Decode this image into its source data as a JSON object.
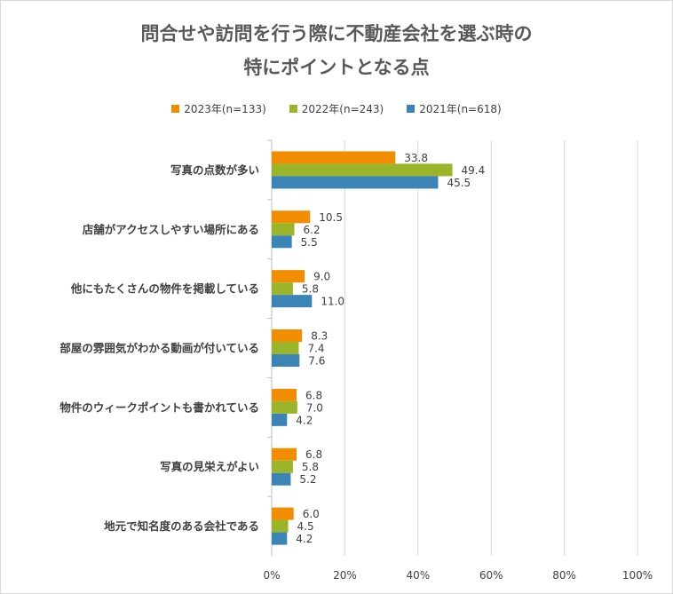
{
  "chart_data": {
    "type": "bar",
    "orientation": "horizontal",
    "title_lines": [
      "問合せや訪問を行う際に不動産会社を選ぶ時の",
      "特にポイントとなる点"
    ],
    "categories": [
      "写真の点数が多い",
      "店舗がアクセスしやすい場所にある",
      "他にもたくさんの物件を掲載している",
      "部屋の雰囲気がわかる動画が付いている",
      "物件のウィークポイントも書かれている",
      "写真の見栄えがよい",
      "地元で知名度のある会社である"
    ],
    "series": [
      {
        "name": "2023年(n=133)",
        "color": "#f28c00",
        "values": [
          33.8,
          10.5,
          9.0,
          8.3,
          6.8,
          6.8,
          6.0
        ]
      },
      {
        "name": "2022年(n=243)",
        "color": "#9bb52a",
        "values": [
          49.4,
          6.2,
          5.8,
          7.4,
          7.0,
          5.8,
          4.5
        ]
      },
      {
        "name": "2021年(n=618)",
        "color": "#3a85b5",
        "values": [
          45.5,
          5.5,
          11.0,
          7.6,
          4.2,
          5.2,
          4.2
        ]
      }
    ],
    "xlim": [
      0,
      100
    ],
    "xticks": [
      "0%",
      "20%",
      "40%",
      "60%",
      "80%",
      "100%"
    ],
    "grid": "vertical",
    "legend_position": "top",
    "data_labels": true
  }
}
